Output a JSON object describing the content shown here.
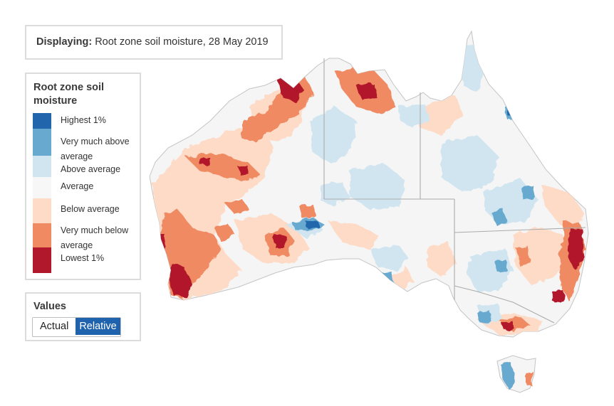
{
  "display": {
    "prefix": "Displaying:",
    "text": "Root zone soil moisture, 28 May 2019"
  },
  "legend": {
    "title": "Root zone soil moisture",
    "items": [
      {
        "label": "Highest 1%",
        "color": "#2166ac"
      },
      {
        "label": "Very much above average",
        "color": "#67a9cf"
      },
      {
        "label": "Above average",
        "color": "#d1e5f0"
      },
      {
        "label": "Average",
        "color": "#f7f7f7"
      },
      {
        "label": "Below average",
        "color": "#fddbc7"
      },
      {
        "label": "Very much below average",
        "color": "#ef8a62"
      },
      {
        "label": "Lowest 1%",
        "color": "#b2182b"
      }
    ]
  },
  "values": {
    "title": "Values",
    "options": [
      "Actual",
      "Relative"
    ],
    "selected": "Relative"
  },
  "map": {
    "land_color": "#f5f5f5",
    "border_color": "#aaaaaa"
  }
}
